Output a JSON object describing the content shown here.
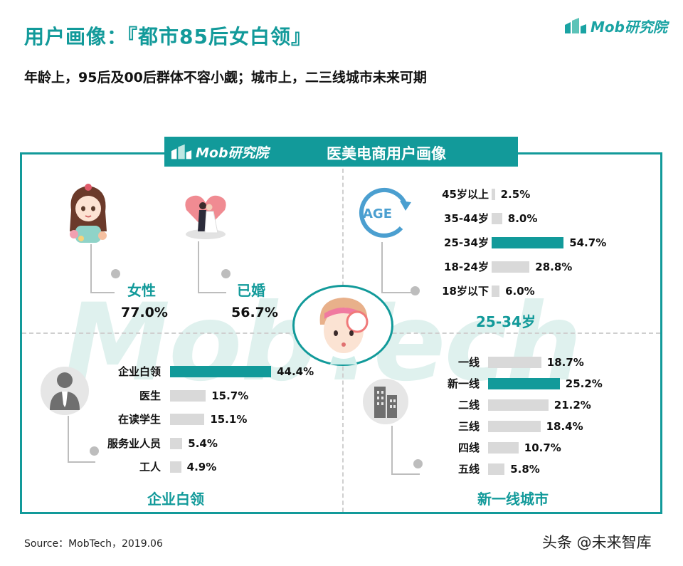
{
  "header": {
    "title": "用户画像：『都市85后女白领』",
    "subtitle": "年龄上，95后及00后群体不容小觑；城市上，二三线城市未来可期",
    "logo_text": "Mob研究院"
  },
  "panel": {
    "banner_logo": "Mob研究院",
    "banner_title": "医美电商用户画像",
    "watermark": "MobTech"
  },
  "gender": {
    "label": "女性",
    "value": "77.0%"
  },
  "marital": {
    "label": "已婚",
    "value": "56.7%"
  },
  "age_icon_text": "AGE",
  "colors": {
    "accent": "#129a9a",
    "bar": "#d9d9d9",
    "connector": "#bdbdbd"
  },
  "chart_data": [
    {
      "type": "bar",
      "orientation": "horizontal",
      "title": "25-34岁",
      "categories": [
        "45岁以上",
        "35-44岁",
        "25-34岁",
        "18-24岁",
        "18岁以下"
      ],
      "values": [
        2.5,
        8.0,
        54.7,
        28.8,
        6.0
      ],
      "value_labels": [
        "2.5%",
        "8.0%",
        "54.7%",
        "28.8%",
        "6.0%"
      ],
      "highlight_index": 2
    },
    {
      "type": "bar",
      "orientation": "horizontal",
      "title": "企业白领",
      "categories": [
        "企业白领",
        "医生",
        "在读学生",
        "服务业人员",
        "工人"
      ],
      "values": [
        44.4,
        15.7,
        15.1,
        5.4,
        4.9
      ],
      "value_labels": [
        "44.4%",
        "15.7%",
        "15.1%",
        "5.4%",
        "4.9%"
      ],
      "highlight_index": 0
    },
    {
      "type": "bar",
      "orientation": "horizontal",
      "title": "新一线城市",
      "categories": [
        "一线",
        "新一线",
        "二线",
        "三线",
        "四线",
        "五线"
      ],
      "values": [
        18.7,
        25.2,
        21.2,
        18.4,
        10.7,
        5.8
      ],
      "value_labels": [
        "18.7%",
        "25.2%",
        "21.2%",
        "18.4%",
        "10.7%",
        "5.8%"
      ],
      "highlight_index": 1
    }
  ],
  "footer": {
    "source": "Source：MobTech，2019.06",
    "credit": "头条 @未来智库"
  }
}
